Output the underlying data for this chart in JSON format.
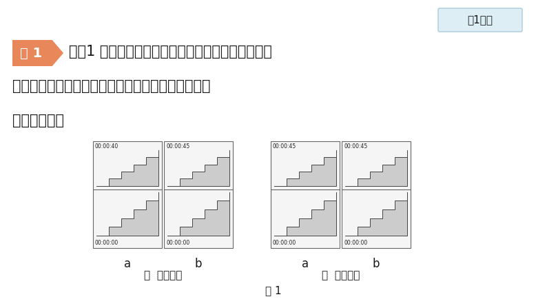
{
  "bg_color": "#ffffff",
  "title_box_color": "#ddeef5",
  "title_box_border": "#aaccdd",
  "title_box_text": "知1一练",
  "example_badge_color": "#E8875A",
  "example_text": "例 1",
  "main_text_line1": "如图1 所示的漫画反映的是两名同学从一楼搬运物体",
  "main_text_line2": "到三楼，由图中的信息，你可以归纳出比较做功快慢",
  "main_text_line3": "的两种方法。",
  "figure_caption": "图 1",
  "label_jia": "甲  重物相同",
  "label_yi": "乙  重物不同",
  "label_a1": "a",
  "label_b1": "b",
  "label_a2": "a",
  "label_b2": "b",
  "frame_times": [
    "00:00:40",
    "00:00:45",
    "00:00:45",
    "00:00:45"
  ],
  "frame_bottom_times": [
    "00:00:00",
    "00:00:00",
    "00:00:00",
    "00:00:00"
  ],
  "text_color": "#1a1a1a",
  "stair_color": "#444444",
  "frame_bg": "#f5f5f5",
  "frame_border": "#666666",
  "stair_fill": "#cccccc"
}
